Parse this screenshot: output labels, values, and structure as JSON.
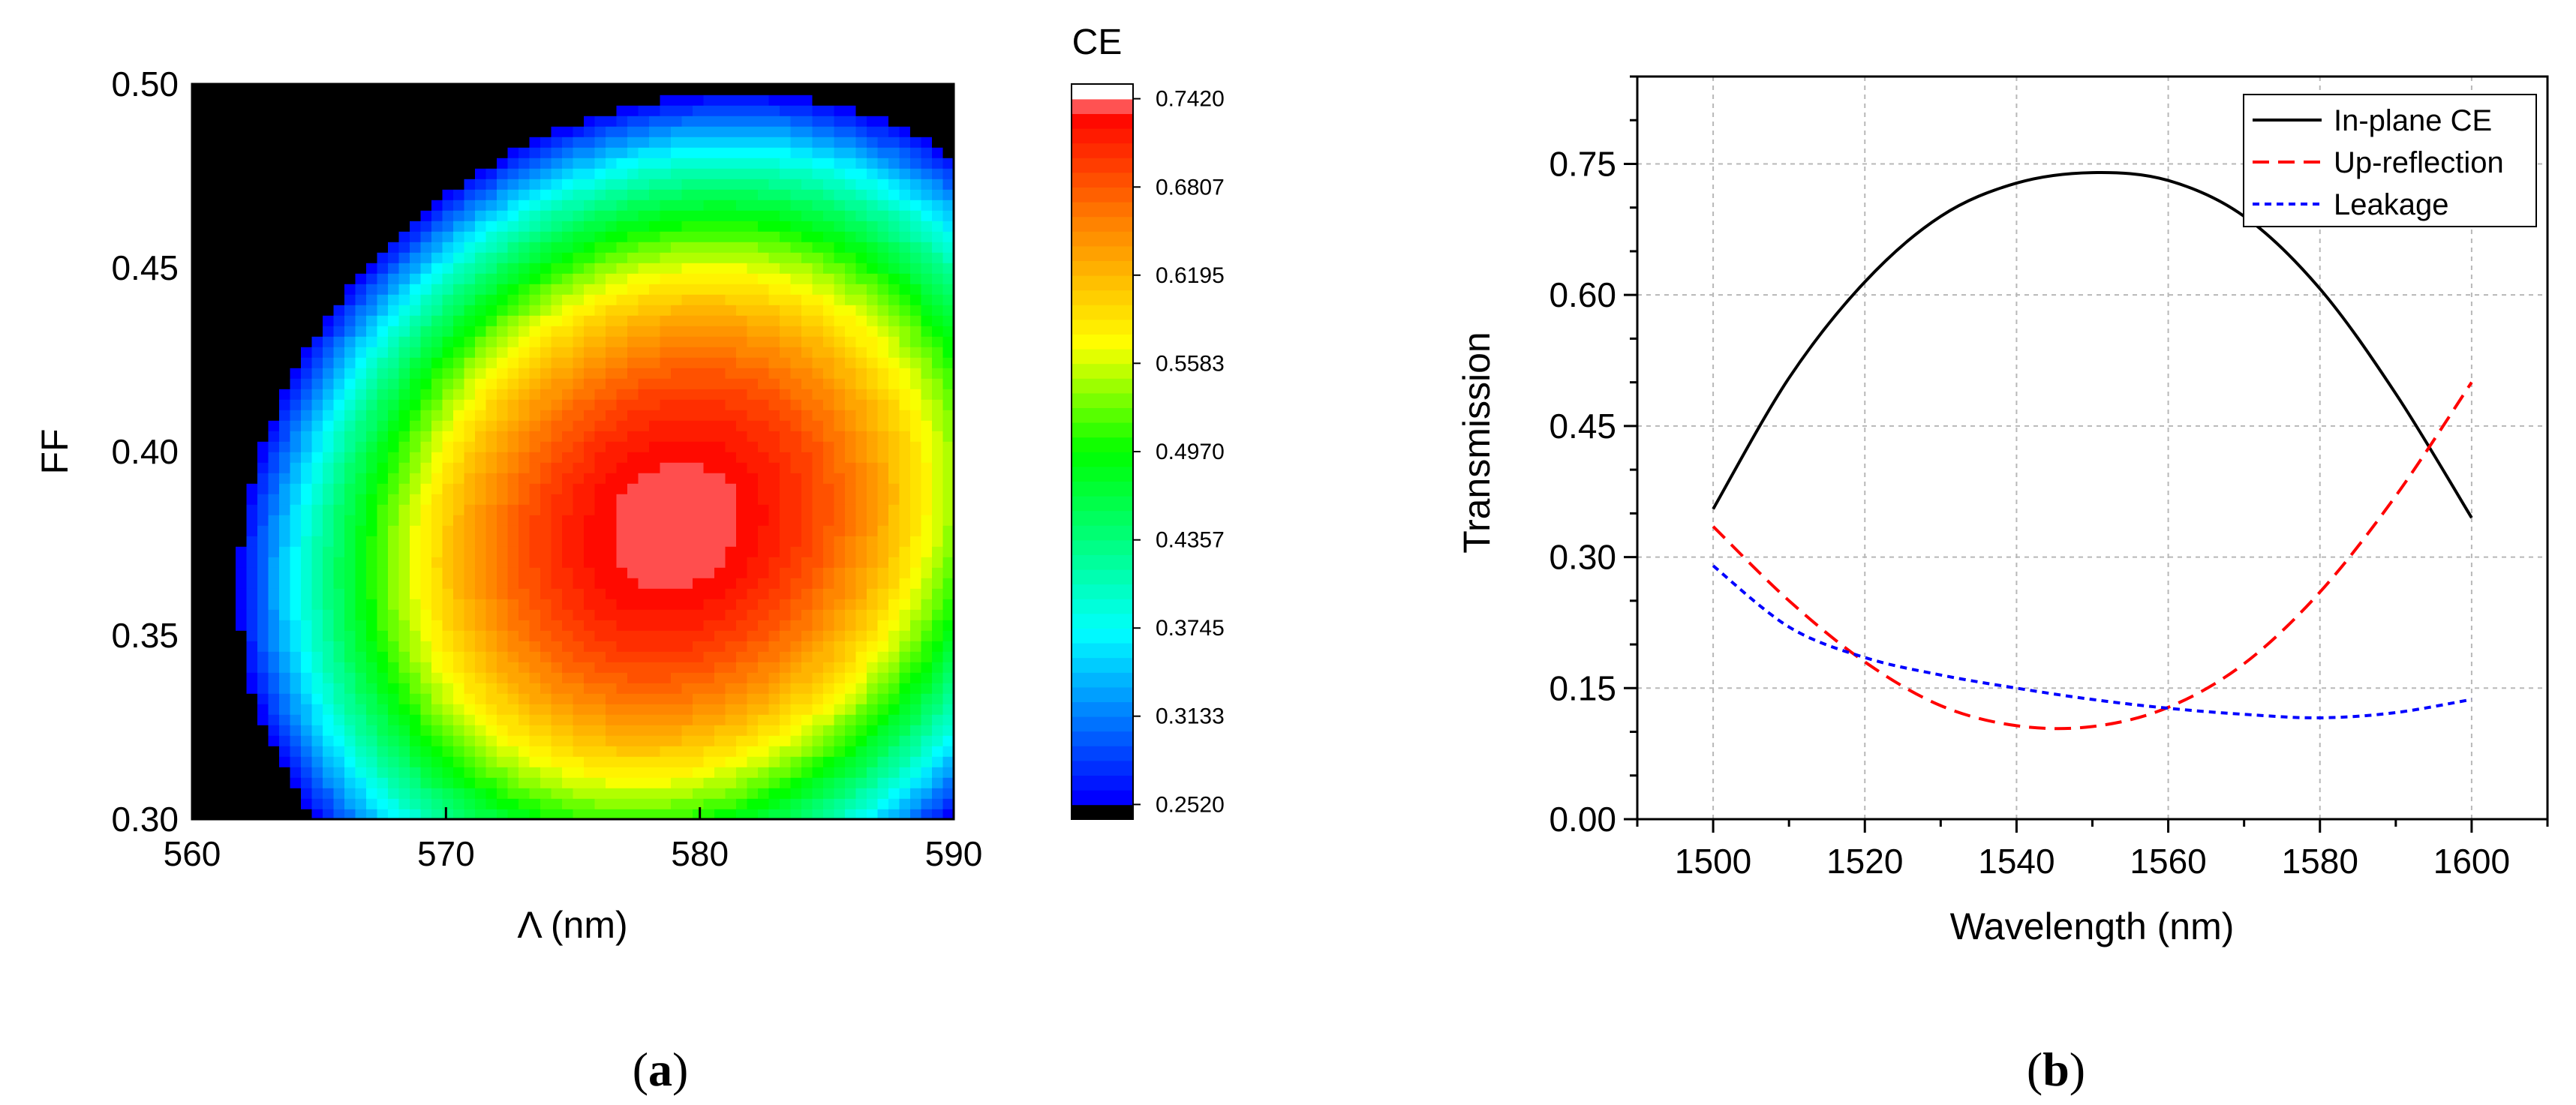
{
  "panel_labels": {
    "a": "a",
    "b": "b"
  },
  "chart_data": [
    {
      "panel": "a",
      "type": "heatmap",
      "xlabel": "Λ (nm)",
      "ylabel": "FF",
      "xlim": [
        560,
        590
      ],
      "ylim": [
        0.3,
        0.5
      ],
      "xticks": [
        560,
        570,
        580,
        590
      ],
      "xtick_labels": [
        "560",
        "570",
        "580",
        "590"
      ],
      "yticks": [
        0.3,
        0.35,
        0.4,
        0.45,
        0.5
      ],
      "ytick_labels": [
        "0.30",
        "0.35",
        "0.40",
        "0.45",
        "0.50"
      ],
      "colorbar": {
        "title": "CE",
        "min": 0.252,
        "max": 0.742,
        "levels": 48,
        "tick_labels": [
          "0.7420",
          "0.6807",
          "0.6195",
          "0.5583",
          "0.4970",
          "0.4357",
          "0.3745",
          "0.3133",
          "0.2520"
        ],
        "tick_values": [
          0.742,
          0.6807,
          0.6195,
          0.5583,
          0.497,
          0.4357,
          0.3745,
          0.3133,
          0.252
        ],
        "colors": [
          "#000000",
          "#0000ff",
          "#00ffff",
          "#00ff00",
          "#ffff00",
          "#ff8000",
          "#ff0000",
          "#ffffff"
        ]
      },
      "peak": {
        "x": 579,
        "y": 0.38,
        "value": 0.742
      }
    },
    {
      "panel": "b",
      "type": "line",
      "xlabel": "Wavelength (nm)",
      "ylabel": "Transmission",
      "xlim": [
        1490,
        1610
      ],
      "ylim": [
        0.0,
        0.85
      ],
      "grid": true,
      "legend_position": "top-right",
      "xticks": [
        1500,
        1520,
        1540,
        1560,
        1580,
        1600
      ],
      "xtick_labels": [
        "1500",
        "1520",
        "1540",
        "1560",
        "1580",
        "1600"
      ],
      "yticks": [
        0.0,
        0.15,
        0.3,
        0.45,
        0.6,
        0.75
      ],
      "ytick_labels": [
        "0.00",
        "0.15",
        "0.30",
        "0.45",
        "0.60",
        "0.75"
      ],
      "x": [
        1500,
        1510,
        1520,
        1530,
        1540,
        1550,
        1560,
        1570,
        1580,
        1590,
        1600
      ],
      "series": [
        {
          "name": "In-plane CE",
          "color": "#000000",
          "style": "solid",
          "values": [
            0.355,
            0.505,
            0.615,
            0.69,
            0.728,
            0.74,
            0.731,
            0.69,
            0.607,
            0.487,
            0.345
          ]
        },
        {
          "name": "Up-reflection",
          "color": "#ff0000",
          "style": "dashed",
          "values": [
            0.335,
            0.25,
            0.18,
            0.13,
            0.107,
            0.106,
            0.128,
            0.178,
            0.26,
            0.37,
            0.5
          ]
        },
        {
          "name": "Leakage",
          "color": "#0000ff",
          "style": "dotted",
          "values": [
            0.29,
            0.22,
            0.185,
            0.165,
            0.15,
            0.137,
            0.127,
            0.12,
            0.116,
            0.122,
            0.137
          ]
        }
      ]
    }
  ]
}
